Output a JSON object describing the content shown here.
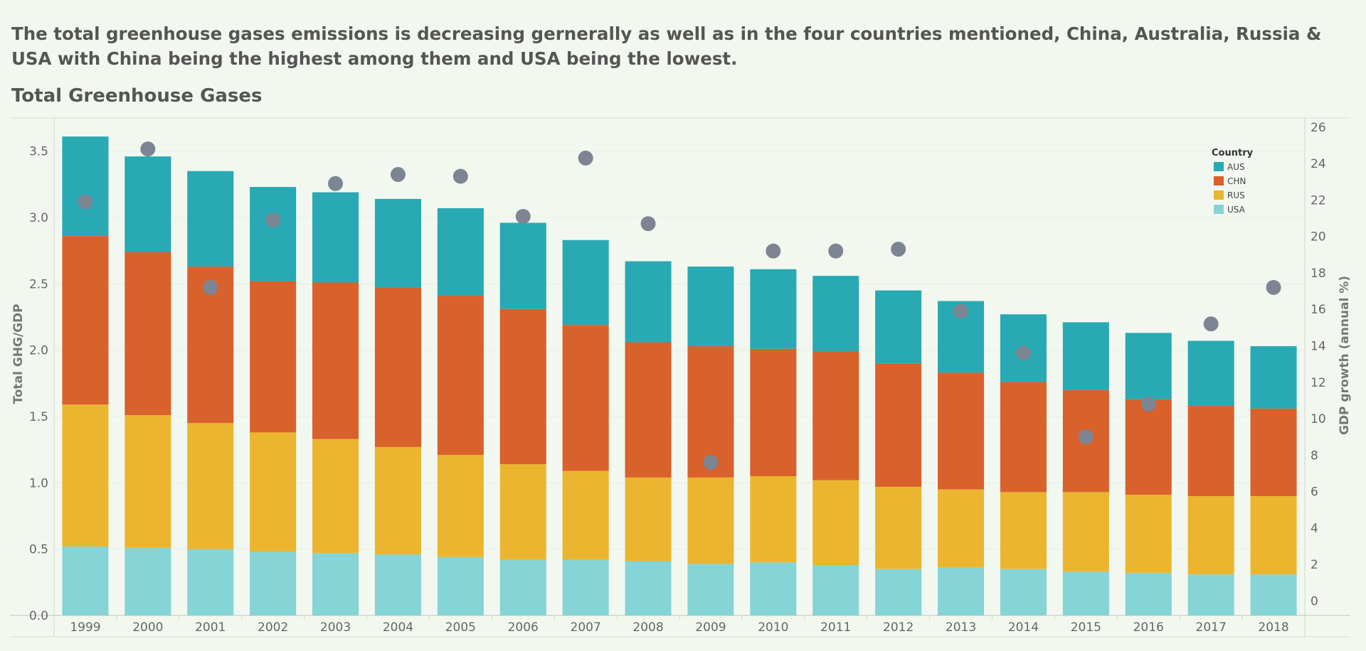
{
  "caption": "The total greenhouse gases emissions is decreasing gernerally as well as in the four countries mentioned, China, Australia, Russia & USA with China being the highest among them and USA being the lowest.",
  "chart_data": {
    "type": "bar",
    "title": "Total Greenhouse Gases",
    "stacked": true,
    "categories": [
      "1999",
      "2000",
      "2001",
      "2002",
      "2003",
      "2004",
      "2005",
      "2006",
      "2007",
      "2008",
      "2009",
      "2010",
      "2011",
      "2012",
      "2013",
      "2014",
      "2015",
      "2016",
      "2017",
      "2018"
    ],
    "series": [
      {
        "name": "USA",
        "color": "#86d4d5",
        "values": [
          0.52,
          0.51,
          0.5,
          0.48,
          0.47,
          0.46,
          0.44,
          0.42,
          0.42,
          0.41,
          0.39,
          0.4,
          0.38,
          0.35,
          0.36,
          0.35,
          0.33,
          0.32,
          0.31,
          0.31
        ]
      },
      {
        "name": "RUS",
        "color": "#ecb52f",
        "values": [
          1.07,
          1.0,
          0.95,
          0.9,
          0.86,
          0.81,
          0.77,
          0.72,
          0.67,
          0.63,
          0.65,
          0.65,
          0.64,
          0.62,
          0.59,
          0.58,
          0.6,
          0.59,
          0.59,
          0.59
        ]
      },
      {
        "name": "CHN",
        "color": "#d8612c",
        "values": [
          1.27,
          1.23,
          1.18,
          1.14,
          1.18,
          1.2,
          1.2,
          1.17,
          1.1,
          1.02,
          0.99,
          0.96,
          0.97,
          0.93,
          0.88,
          0.83,
          0.77,
          0.72,
          0.68,
          0.66
        ]
      },
      {
        "name": "AUS",
        "color": "#28a9b3",
        "values": [
          0.75,
          0.72,
          0.72,
          0.71,
          0.68,
          0.67,
          0.66,
          0.65,
          0.64,
          0.61,
          0.6,
          0.6,
          0.57,
          0.55,
          0.54,
          0.51,
          0.51,
          0.5,
          0.49,
          0.47
        ]
      }
    ],
    "ylabel": "Total GHG/GDP",
    "ylim": [
      0,
      3.75
    ],
    "yticks": [
      "0.0",
      "0.5",
      "1.0",
      "1.5",
      "2.0",
      "2.5",
      "3.0",
      "3.5"
    ],
    "y2label": "GDP growth (annual %)",
    "y2lim": [
      -0.8,
      26.5
    ],
    "y2ticks": [
      "0",
      "2",
      "4",
      "6",
      "8",
      "10",
      "12",
      "14",
      "16",
      "18",
      "20",
      "22",
      "24",
      "26"
    ],
    "gdp_growth": {
      "type": "scatter",
      "color": "#7d8593",
      "values": [
        21.9,
        24.8,
        17.2,
        20.9,
        22.9,
        23.4,
        23.3,
        21.1,
        24.3,
        20.7,
        7.6,
        19.2,
        19.2,
        19.3,
        15.9,
        13.6,
        9.0,
        10.8,
        15.2,
        17.2
      ]
    },
    "legend": {
      "title": "Country",
      "entries": [
        "AUS",
        "CHN",
        "RUS",
        "USA"
      ],
      "colors": [
        "#28a9b3",
        "#d8612c",
        "#ecb52f",
        "#86d4d5"
      ],
      "position": "top-right"
    },
    "grid": true
  }
}
